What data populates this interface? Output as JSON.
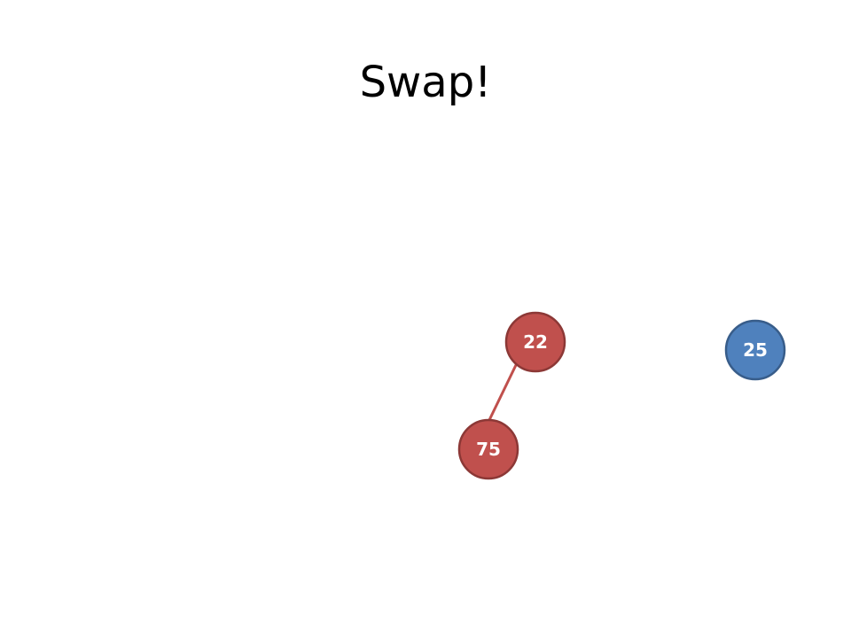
{
  "slide": {
    "title": "Swap!"
  },
  "tree": {
    "nodes": [
      {
        "id": "n22",
        "label": "22",
        "color": "#c0504d",
        "stroke": "#8c3836"
      },
      {
        "id": "n75",
        "label": "75",
        "color": "#c0504d",
        "stroke": "#8c3836"
      },
      {
        "id": "n25",
        "label": "25",
        "color": "#4f81bd",
        "stroke": "#385d8a"
      }
    ],
    "edges": [
      {
        "from": "n22",
        "to": "n75",
        "color": "#c0504d"
      }
    ]
  }
}
